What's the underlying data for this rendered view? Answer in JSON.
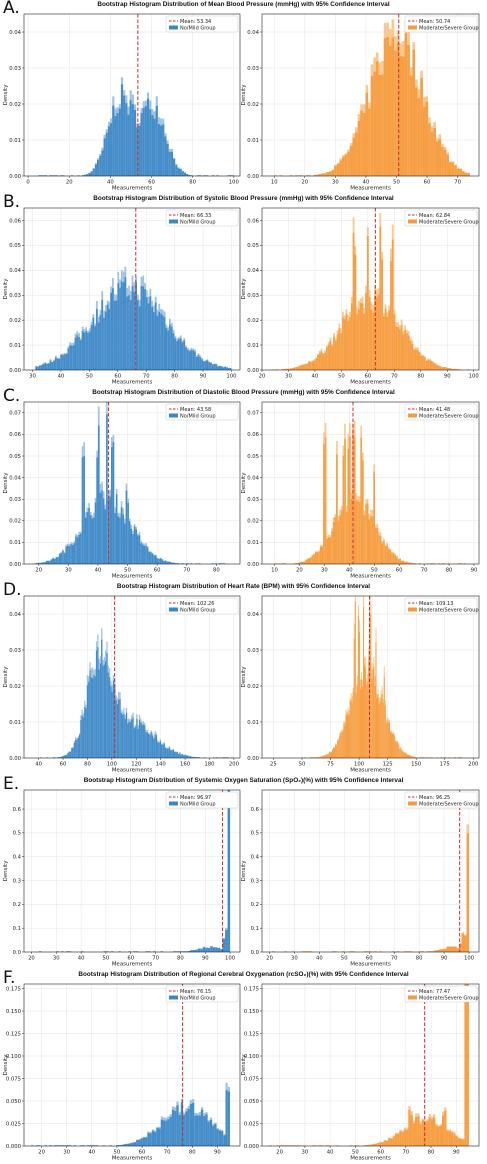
{
  "axis_labels": {
    "x": "Measurements",
    "y": "Density"
  },
  "colors": {
    "no_mild": "#3a87c5",
    "no_mild_ci": "#9fc3e4",
    "mod_severe": "#f59a3c",
    "mod_severe_ci": "#f9c78f",
    "mean_line": "#d62728"
  },
  "chart_data": [
    {
      "letter": "A.",
      "type": "bar",
      "title": "Bootstrap Histogram Distribution of Mean Blood Pressure (mmHg) with 95% Confidence Interval",
      "left": {
        "legend": [
          "Mean: 53.34",
          "No/Mild Group"
        ],
        "mean": 53.34,
        "xlim": [
          -2,
          103
        ],
        "xticks": [
          0,
          20,
          40,
          60,
          80,
          100
        ],
        "ylim": [
          0,
          0.045
        ],
        "yticks": [
          0,
          0.01,
          0.02,
          0.03,
          0.04
        ],
        "ytick_labels": [
          "0.00",
          "0.01",
          "0.02",
          "0.03",
          "0.04"
        ],
        "dist": {
          "min": 5,
          "max": 100,
          "bins": 90,
          "components": [
            [
              0.5,
              45,
              6,
              0.042
            ],
            [
              0.45,
              61,
              6,
              0.042
            ]
          ]
        }
      },
      "right": {
        "legend": [
          "Mean: 50.74",
          "Moderate/Severe Group"
        ],
        "mean": 50.74,
        "xlim": [
          6,
          77
        ],
        "xticks": [
          10,
          20,
          30,
          40,
          50,
          60,
          70
        ],
        "ylim": [
          0,
          0.045
        ],
        "yticks": [
          0,
          0.01,
          0.02,
          0.03,
          0.04
        ],
        "ytick_labels": [
          "0.00",
          "0.01",
          "0.02",
          "0.03",
          "0.04"
        ],
        "dist": {
          "min": 10,
          "max": 74,
          "bins": 75,
          "components": [
            [
              1,
              50,
              8.5,
              0.038
            ]
          ]
        }
      }
    },
    {
      "letter": "B.",
      "type": "bar",
      "title": "Bootstrap Histogram Distribution of Systolic Blood Pressure (mmHg) with 95% Confidence Interval",
      "left": {
        "legend": [
          "Mean: 66.33",
          "No/Mild Group"
        ],
        "mean": 66.33,
        "xlim": [
          27,
          103
        ],
        "xticks": [
          30,
          40,
          50,
          60,
          70,
          80,
          90,
          100
        ],
        "ylim": [
          0,
          0.065
        ],
        "yticks": [
          0,
          0.01,
          0.02,
          0.03,
          0.04,
          0.05,
          0.06
        ],
        "ytick_labels": [
          "0.00",
          "0.01",
          "0.02",
          "0.03",
          "0.04",
          "0.05",
          "0.06"
        ],
        "dist": {
          "min": 31,
          "max": 100,
          "bins": 110,
          "components": [
            [
              1,
              64,
              13,
              0.032
            ]
          ]
        }
      },
      "right": {
        "legend": [
          "Mean: 62.84",
          "Moderate/Severe Group"
        ],
        "mean": 62.84,
        "xlim": [
          20,
          102
        ],
        "xticks": [
          20,
          30,
          40,
          50,
          60,
          70,
          80,
          90,
          100
        ],
        "ylim": [
          0,
          0.065
        ],
        "yticks": [
          0,
          0.01,
          0.02,
          0.03,
          0.04,
          0.05,
          0.06
        ],
        "ytick_labels": [
          "0.00",
          "0.01",
          "0.02",
          "0.03",
          "0.04",
          "0.05",
          "0.06"
        ],
        "dist": {
          "min": 24,
          "max": 98,
          "bins": 110,
          "components": [
            [
              1,
              61,
              11,
              0.028
            ]
          ],
          "spikes": [
            [
              55,
              0.054
            ],
            [
              60,
              0.06
            ],
            [
              65,
              0.054
            ],
            [
              69,
              0.048
            ]
          ]
        }
      }
    },
    {
      "letter": "C.",
      "type": "bar",
      "title": "Bootstrap Histogram Distribution of Diastolic Blood Pressure (mmHg) with 95% Confidence Interval",
      "left": {
        "legend": [
          "Mean: 43.58",
          "No/Mild Group"
        ],
        "mean": 43.58,
        "xlim": [
          15,
          88
        ],
        "xticks": [
          20,
          30,
          40,
          50,
          60,
          70,
          80
        ],
        "ylim": [
          0,
          0.075
        ],
        "yticks": [
          0,
          0.01,
          0.02,
          0.03,
          0.04,
          0.05,
          0.06,
          0.07
        ],
        "ytick_labels": [
          "0.00",
          "0.01",
          "0.02",
          "0.03",
          "0.04",
          "0.05",
          "0.06",
          "0.07"
        ],
        "dist": {
          "min": 18,
          "max": 84,
          "bins": 120,
          "components": [
            [
              1,
              43,
              8,
              0.03
            ]
          ],
          "spikes": [
            [
              35,
              0.045
            ],
            [
              40,
              0.06
            ],
            [
              43,
              0.07
            ],
            [
              45,
              0.05
            ],
            [
              50,
              0.03
            ]
          ]
        }
      },
      "right": {
        "legend": [
          "Mean: 41.48",
          "Moderate/Severe Group"
        ],
        "mean": 41.48,
        "xlim": [
          5,
          92
        ],
        "xticks": [
          10,
          20,
          30,
          40,
          50,
          60,
          70,
          80,
          90
        ],
        "ylim": [
          0,
          0.075
        ],
        "yticks": [
          0,
          0.01,
          0.02,
          0.03,
          0.04,
          0.05,
          0.06,
          0.07
        ],
        "ytick_labels": [
          "0.00",
          "0.01",
          "0.02",
          "0.03",
          "0.04",
          "0.05",
          "0.06",
          "0.07"
        ],
        "dist": {
          "min": 10,
          "max": 88,
          "bins": 120,
          "components": [
            [
              1,
              42,
              8,
              0.03
            ]
          ],
          "spikes": [
            [
              30,
              0.05
            ],
            [
              35,
              0.056
            ],
            [
              38,
              0.058
            ],
            [
              40,
              0.061
            ],
            [
              42,
              0.06
            ],
            [
              45,
              0.05
            ],
            [
              50,
              0.044
            ]
          ]
        }
      }
    },
    {
      "letter": "D.",
      "type": "bar",
      "title": "Bootstrap Histogram Distribution of Heart Rate (BPM) with 95% Confidence Interval",
      "left": {
        "legend": [
          "Mean: 102.26",
          "No/Mild Group"
        ],
        "mean": 102.26,
        "xlim": [
          28,
          205
        ],
        "xticks": [
          40,
          60,
          80,
          100,
          120,
          140,
          160,
          180,
          200
        ],
        "ylim": [
          0,
          0.045
        ],
        "yticks": [
          0,
          0.01,
          0.02,
          0.03,
          0.04
        ],
        "ytick_labels": [
          "0.00",
          "0.01",
          "0.02",
          "0.03",
          "0.04"
        ],
        "dist": {
          "min": 40,
          "max": 200,
          "bins": 150,
          "components": [
            [
              1,
              90,
              10,
              0.025
            ],
            [
              0.8,
              115,
              20,
              0.012
            ]
          ]
        }
      },
      "right": {
        "legend": [
          "Mean: 109.13",
          "Moderate/Severe Group"
        ],
        "mean": 109.13,
        "xlim": [
          15,
          205
        ],
        "xticks": [
          25,
          50,
          75,
          100,
          125,
          150,
          175,
          200
        ],
        "ylim": [
          0,
          0.045
        ],
        "yticks": [
          0,
          0.01,
          0.02,
          0.03,
          0.04
        ],
        "ytick_labels": [
          "0.00",
          "0.01",
          "0.02",
          "0.03",
          "0.04"
        ],
        "dist": {
          "min": 50,
          "max": 195,
          "bins": 160,
          "components": [
            [
              1,
              107,
              14,
              0.024
            ]
          ],
          "spikes": [
            [
              96,
              0.038
            ],
            [
              100,
              0.036
            ],
            [
              104,
              0.04
            ],
            [
              110,
              0.036
            ],
            [
              115,
              0.03
            ],
            [
              122,
              0.022
            ]
          ]
        }
      }
    },
    {
      "letter": "E.",
      "type": "bar",
      "title": "Bootstrap Histogram Distribution of Systemic Oxygen Saturation (SpO₂)(%) with 95% Confidence Interval",
      "left": {
        "legend": [
          "Mean: 96.97",
          "No/Mild Group"
        ],
        "mean": 96.97,
        "xlim": [
          17,
          104
        ],
        "xticks": [
          20,
          30,
          40,
          50,
          60,
          70,
          80,
          90,
          100
        ],
        "ylim": [
          0,
          0.68
        ],
        "yticks": [
          0,
          0.1,
          0.2,
          0.3,
          0.4,
          0.5,
          0.6
        ],
        "ytick_labels": [
          "0.0",
          "0.1",
          "0.2",
          "0.3",
          "0.4",
          "0.5",
          "0.6"
        ],
        "dist": {
          "min": 20,
          "max": 100,
          "bins": 80,
          "components": [
            [
              1,
              92,
              5,
              0.02
            ]
          ],
          "spikes": [
            [
              98,
              0.05
            ],
            [
              99,
              0.09
            ],
            [
              100,
              0.63
            ]
          ]
        }
      },
      "right": {
        "legend": [
          "Mean: 96.25",
          "Moderate/Severe Group"
        ],
        "mean": 96.25,
        "xlim": [
          17,
          104
        ],
        "xticks": [
          20,
          30,
          40,
          50,
          60,
          70,
          80,
          90,
          100
        ],
        "ylim": [
          0,
          0.68
        ],
        "yticks": [
          0,
          0.1,
          0.2,
          0.3,
          0.4,
          0.5,
          0.6
        ],
        "ytick_labels": [
          "0.0",
          "0.1",
          "0.2",
          "0.3",
          "0.4",
          "0.5",
          "0.6"
        ],
        "dist": {
          "min": 20,
          "max": 100,
          "bins": 80,
          "components": [
            [
              1,
              93,
              4,
              0.02
            ]
          ],
          "spikes": [
            [
              97,
              0.04
            ],
            [
              98,
              0.07
            ],
            [
              100,
              0.49
            ]
          ]
        }
      }
    },
    {
      "letter": "F.",
      "type": "bar",
      "title": "Bootstrap Histogram Distribution of Regional Cerebral Oxygenation (rcSO₂)(%) with 95% Confidence Interval",
      "left": {
        "legend": [
          "Mean: 76.15",
          "No/Mild Group"
        ],
        "mean": 76.15,
        "xlim": [
          13,
          99
        ],
        "xticks": [
          20,
          30,
          40,
          50,
          60,
          70,
          80,
          90
        ],
        "ylim": [
          0,
          0.18
        ],
        "yticks": [
          0,
          0.025,
          0.05,
          0.075,
          0.1,
          0.125,
          0.15,
          0.175
        ],
        "ytick_labels": [
          "0.000",
          "0.025",
          "0.050",
          "0.075",
          "0.100",
          "0.125",
          "0.150",
          "0.175"
        ],
        "dist": {
          "min": 15,
          "max": 95,
          "bins": 90,
          "components": [
            [
              1,
              78,
              10,
              0.042
            ]
          ],
          "spikes": [
            [
              94,
              0.06
            ]
          ]
        }
      },
      "right": {
        "legend": [
          "Mean: 77.47",
          "Moderate/Severe Group"
        ],
        "mean": 77.47,
        "xlim": [
          13,
          99
        ],
        "xticks": [
          20,
          30,
          40,
          50,
          60,
          70,
          80,
          90
        ],
        "ylim": [
          0,
          0.18
        ],
        "yticks": [
          0,
          0.025,
          0.05,
          0.075,
          0.1,
          0.125,
          0.15,
          0.175
        ],
        "ytick_labels": [
          "0.000",
          "0.025",
          "0.050",
          "0.075",
          "0.100",
          "0.125",
          "0.150",
          "0.175"
        ],
        "dist": {
          "min": 15,
          "max": 95,
          "bins": 90,
          "components": [
            [
              1,
              78,
              9,
              0.03
            ]
          ],
          "spikes": [
            [
              72,
              0.04
            ],
            [
              85,
              0.035
            ],
            [
              94,
              0.175
            ]
          ]
        }
      }
    }
  ]
}
